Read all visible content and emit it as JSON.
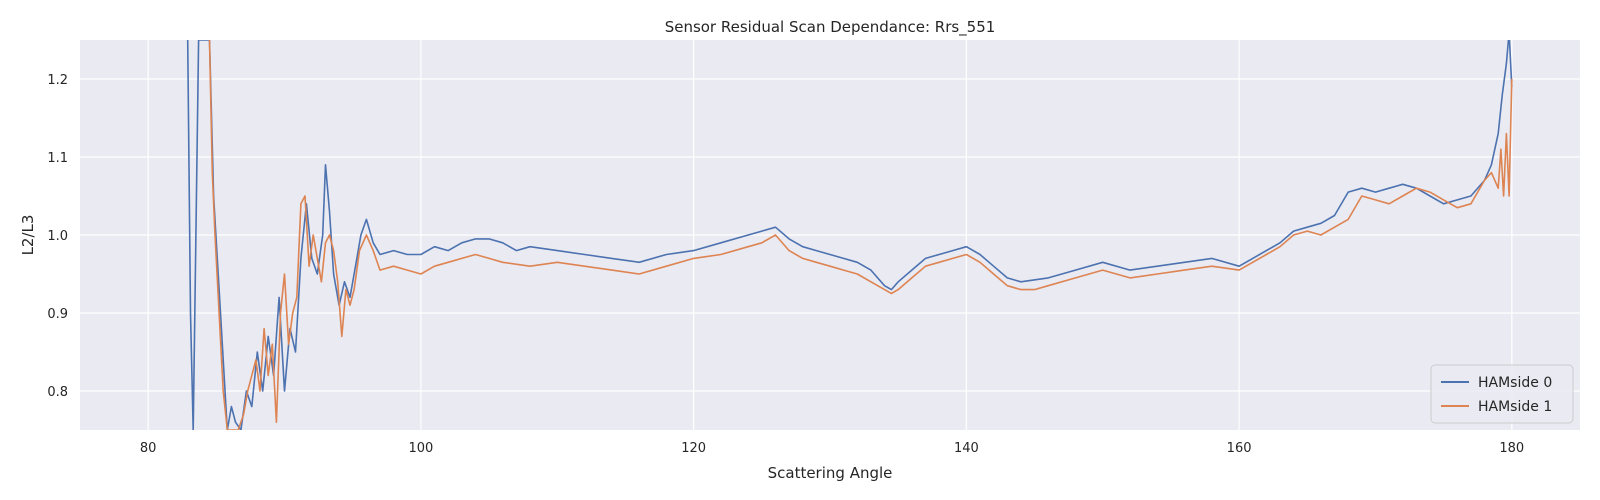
{
  "chart_data": {
    "type": "line",
    "title": "Sensor Residual Scan Dependance: Rrs_551",
    "xlabel": "Scattering Angle",
    "ylabel": "L2/L3",
    "xlim": [
      75,
      185
    ],
    "ylim": [
      0.75,
      1.25
    ],
    "xticks": [
      80,
      100,
      120,
      140,
      160,
      180
    ],
    "yticks": [
      0.8,
      0.9,
      1.0,
      1.1,
      1.2
    ],
    "xtick_labels": [
      "80",
      "100",
      "120",
      "140",
      "160",
      "180"
    ],
    "ytick_labels": [
      "0.8",
      "0.9",
      "1.0",
      "1.1",
      "1.2"
    ],
    "grid": true,
    "legend_position": "lower-right",
    "background": "#eaeaf2",
    "series": [
      {
        "name": "HAMside 0",
        "color": "#4c72b0",
        "x": [
          82.9,
          83.1,
          83.3,
          83.5,
          83.7,
          84.5,
          84.8,
          85.3,
          85.8,
          86.1,
          86.4,
          86.8,
          87.2,
          87.6,
          88.0,
          88.4,
          88.8,
          89.2,
          89.6,
          90.0,
          90.4,
          90.8,
          91.2,
          91.6,
          92.0,
          92.4,
          92.8,
          93.0,
          93.3,
          93.6,
          94.0,
          94.4,
          94.8,
          95.2,
          95.6,
          96.0,
          96.5,
          97,
          98,
          99,
          100,
          101,
          102,
          103,
          104,
          105,
          106,
          107,
          108,
          110,
          112,
          114,
          116,
          118,
          120,
          122,
          124,
          126,
          127,
          128,
          129,
          130,
          131,
          132,
          133,
          134,
          134.5,
          135,
          136,
          137,
          138,
          139,
          140,
          141,
          142,
          143,
          144,
          146,
          148,
          150,
          152,
          154,
          156,
          158,
          160,
          161,
          162,
          163,
          164,
          165,
          166,
          167,
          168,
          169,
          170,
          171,
          172,
          173,
          174,
          175,
          176,
          177,
          178,
          178.5,
          179,
          179.3,
          179.6,
          179.8,
          180.0
        ],
        "y": [
          1.25,
          0.9,
          0.75,
          1.0,
          1.25,
          1.25,
          1.05,
          0.9,
          0.75,
          0.78,
          0.76,
          0.75,
          0.8,
          0.78,
          0.85,
          0.8,
          0.87,
          0.82,
          0.92,
          0.8,
          0.88,
          0.85,
          0.97,
          1.04,
          0.97,
          0.95,
          1.0,
          1.09,
          1.03,
          0.95,
          0.91,
          0.94,
          0.92,
          0.96,
          1.0,
          1.02,
          0.99,
          0.975,
          0.98,
          0.975,
          0.975,
          0.985,
          0.98,
          0.99,
          0.995,
          0.995,
          0.99,
          0.98,
          0.985,
          0.98,
          0.975,
          0.97,
          0.965,
          0.975,
          0.98,
          0.99,
          1.0,
          1.01,
          0.995,
          0.985,
          0.98,
          0.975,
          0.97,
          0.965,
          0.955,
          0.935,
          0.93,
          0.94,
          0.955,
          0.97,
          0.975,
          0.98,
          0.985,
          0.975,
          0.96,
          0.945,
          0.94,
          0.945,
          0.955,
          0.965,
          0.955,
          0.96,
          0.965,
          0.97,
          0.96,
          0.97,
          0.98,
          0.99,
          1.005,
          1.01,
          1.015,
          1.025,
          1.055,
          1.06,
          1.055,
          1.06,
          1.065,
          1.06,
          1.05,
          1.04,
          1.045,
          1.05,
          1.07,
          1.09,
          1.13,
          1.18,
          1.22,
          1.26,
          1.19
        ]
      },
      {
        "name": "HAMside 1",
        "color": "#dd8452",
        "x": [
          84.5,
          84.7,
          84.9,
          85.2,
          85.5,
          85.8,
          86.2,
          86.6,
          87.0,
          87.3,
          87.6,
          87.9,
          88.2,
          88.5,
          88.8,
          89.1,
          89.4,
          89.7,
          90.0,
          90.3,
          90.6,
          90.9,
          91.2,
          91.5,
          91.8,
          92.1,
          92.4,
          92.7,
          93.0,
          93.3,
          93.6,
          93.9,
          94.2,
          94.5,
          94.8,
          95.1,
          95.5,
          96.0,
          96.5,
          97,
          98,
          99,
          100,
          101,
          102,
          103,
          104,
          105,
          106,
          108,
          110,
          112,
          114,
          116,
          118,
          120,
          122,
          124,
          125,
          126,
          127,
          128,
          129,
          130,
          131,
          132,
          133,
          134,
          134.5,
          135,
          136,
          137,
          138,
          139,
          140,
          141,
          142,
          143,
          144,
          145,
          146,
          148,
          150,
          152,
          154,
          156,
          158,
          160,
          161,
          162,
          163,
          164,
          165,
          166,
          167,
          168,
          169,
          170,
          171,
          172,
          173,
          174,
          175,
          176,
          177,
          178,
          178.5,
          179,
          179.2,
          179.4,
          179.6,
          179.8,
          180.0
        ],
        "y": [
          1.25,
          1.08,
          1.0,
          0.9,
          0.8,
          0.75,
          0.75,
          0.75,
          0.77,
          0.8,
          0.82,
          0.84,
          0.8,
          0.88,
          0.82,
          0.86,
          0.76,
          0.9,
          0.95,
          0.86,
          0.9,
          0.92,
          1.04,
          1.05,
          0.96,
          1.0,
          0.97,
          0.94,
          0.99,
          1.0,
          0.98,
          0.94,
          0.87,
          0.93,
          0.91,
          0.93,
          0.98,
          1.0,
          0.98,
          0.955,
          0.96,
          0.955,
          0.95,
          0.96,
          0.965,
          0.97,
          0.975,
          0.97,
          0.965,
          0.96,
          0.965,
          0.96,
          0.955,
          0.95,
          0.96,
          0.97,
          0.975,
          0.985,
          0.99,
          1.0,
          0.98,
          0.97,
          0.965,
          0.96,
          0.955,
          0.95,
          0.94,
          0.93,
          0.925,
          0.93,
          0.945,
          0.96,
          0.965,
          0.97,
          0.975,
          0.965,
          0.95,
          0.935,
          0.93,
          0.93,
          0.935,
          0.945,
          0.955,
          0.945,
          0.95,
          0.955,
          0.96,
          0.955,
          0.965,
          0.975,
          0.985,
          1.0,
          1.005,
          1.0,
          1.01,
          1.02,
          1.05,
          1.045,
          1.04,
          1.05,
          1.06,
          1.055,
          1.045,
          1.035,
          1.04,
          1.07,
          1.08,
          1.06,
          1.11,
          1.05,
          1.13,
          1.05,
          1.2
        ]
      }
    ]
  }
}
